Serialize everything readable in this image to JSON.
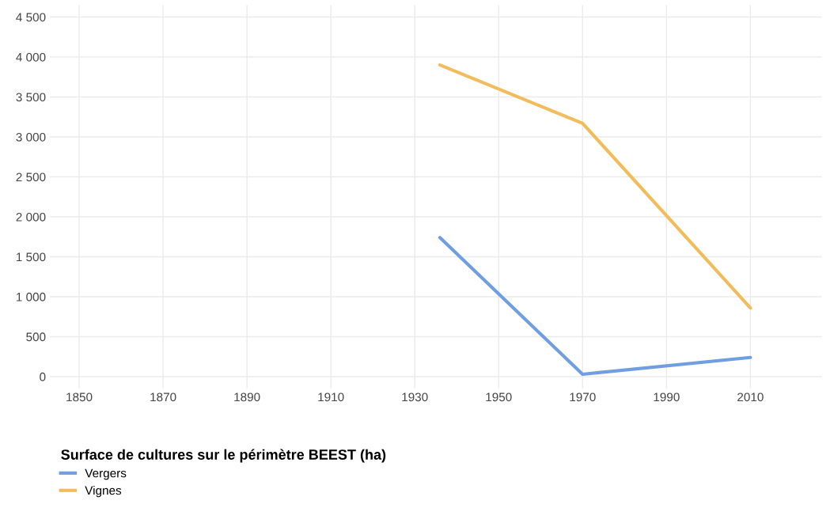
{
  "chart_data": {
    "type": "line",
    "legend_title": "Surface de cultures sur le périmètre BEEST (ha)",
    "series": [
      {
        "name": "Vergers",
        "color": "#6f9fe0",
        "x": [
          1936,
          1970,
          2010
        ],
        "values": [
          1740,
          30,
          240
        ]
      },
      {
        "name": "Vignes",
        "color": "#f2bc5c",
        "x": [
          1936,
          1970,
          2010
        ],
        "values": [
          3900,
          3170,
          860
        ]
      }
    ],
    "xlim": [
      1843,
      2027
    ],
    "xticks": [
      1850,
      1870,
      1890,
      1910,
      1930,
      1950,
      1970,
      1990,
      2010
    ],
    "ylim": [
      -150,
      4650
    ],
    "yticks": [
      0,
      500,
      {
        "value": 1000,
        "label": "1 000"
      },
      {
        "value": 1500,
        "label": "1 500"
      },
      {
        "value": 2000,
        "label": "2 000"
      },
      {
        "value": 2500,
        "label": "2 500"
      },
      {
        "value": 3000,
        "label": "3 000"
      },
      {
        "value": 3500,
        "label": "3 500"
      },
      {
        "value": 4000,
        "label": "4 000"
      },
      {
        "value": 4500,
        "label": "4 500"
      }
    ],
    "grid": true,
    "legend": "bottom left",
    "marker": "none",
    "line_style": "solid"
  }
}
